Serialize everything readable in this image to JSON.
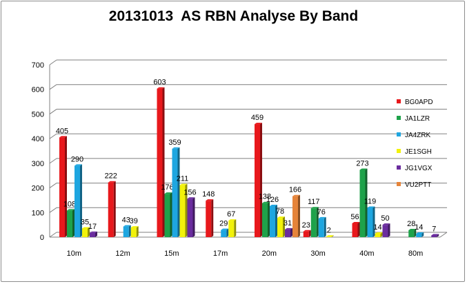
{
  "chart_data": {
    "type": "bar",
    "title": "20131013  AS RBN Analyse By Band",
    "xlabel": "",
    "ylabel": "",
    "ylim": [
      0,
      700
    ],
    "yticks": [
      0,
      100,
      200,
      300,
      400,
      500,
      600,
      700
    ],
    "grid": true,
    "legend_position": "right",
    "categories": [
      "10m",
      "12m",
      "15m",
      "17m",
      "20m",
      "30m",
      "40m",
      "80m"
    ],
    "series": [
      {
        "name": "BG0APD",
        "color": "#e8181c",
        "values": [
          405,
          222,
          603,
          148,
          459,
          23,
          56,
          null
        ]
      },
      {
        "name": "JA1LZR",
        "color": "#1ea24a",
        "values": [
          108,
          null,
          176,
          null,
          138,
          117,
          273,
          28
        ]
      },
      {
        "name": "JA4ZRK",
        "color": "#1ea6e0",
        "values": [
          290,
          43,
          359,
          29,
          126,
          76,
          119,
          14
        ]
      },
      {
        "name": "JE1SGH",
        "color": "#f2f20a",
        "values": [
          35,
          39,
          211,
          67,
          78,
          2,
          14,
          null
        ]
      },
      {
        "name": "JG1VGX",
        "color": "#6a2c9e",
        "values": [
          17,
          null,
          156,
          null,
          31,
          null,
          50,
          7
        ]
      },
      {
        "name": "VU2PTT",
        "color": "#e5843a",
        "values": [
          null,
          null,
          null,
          null,
          166,
          null,
          null,
          null
        ]
      }
    ]
  }
}
